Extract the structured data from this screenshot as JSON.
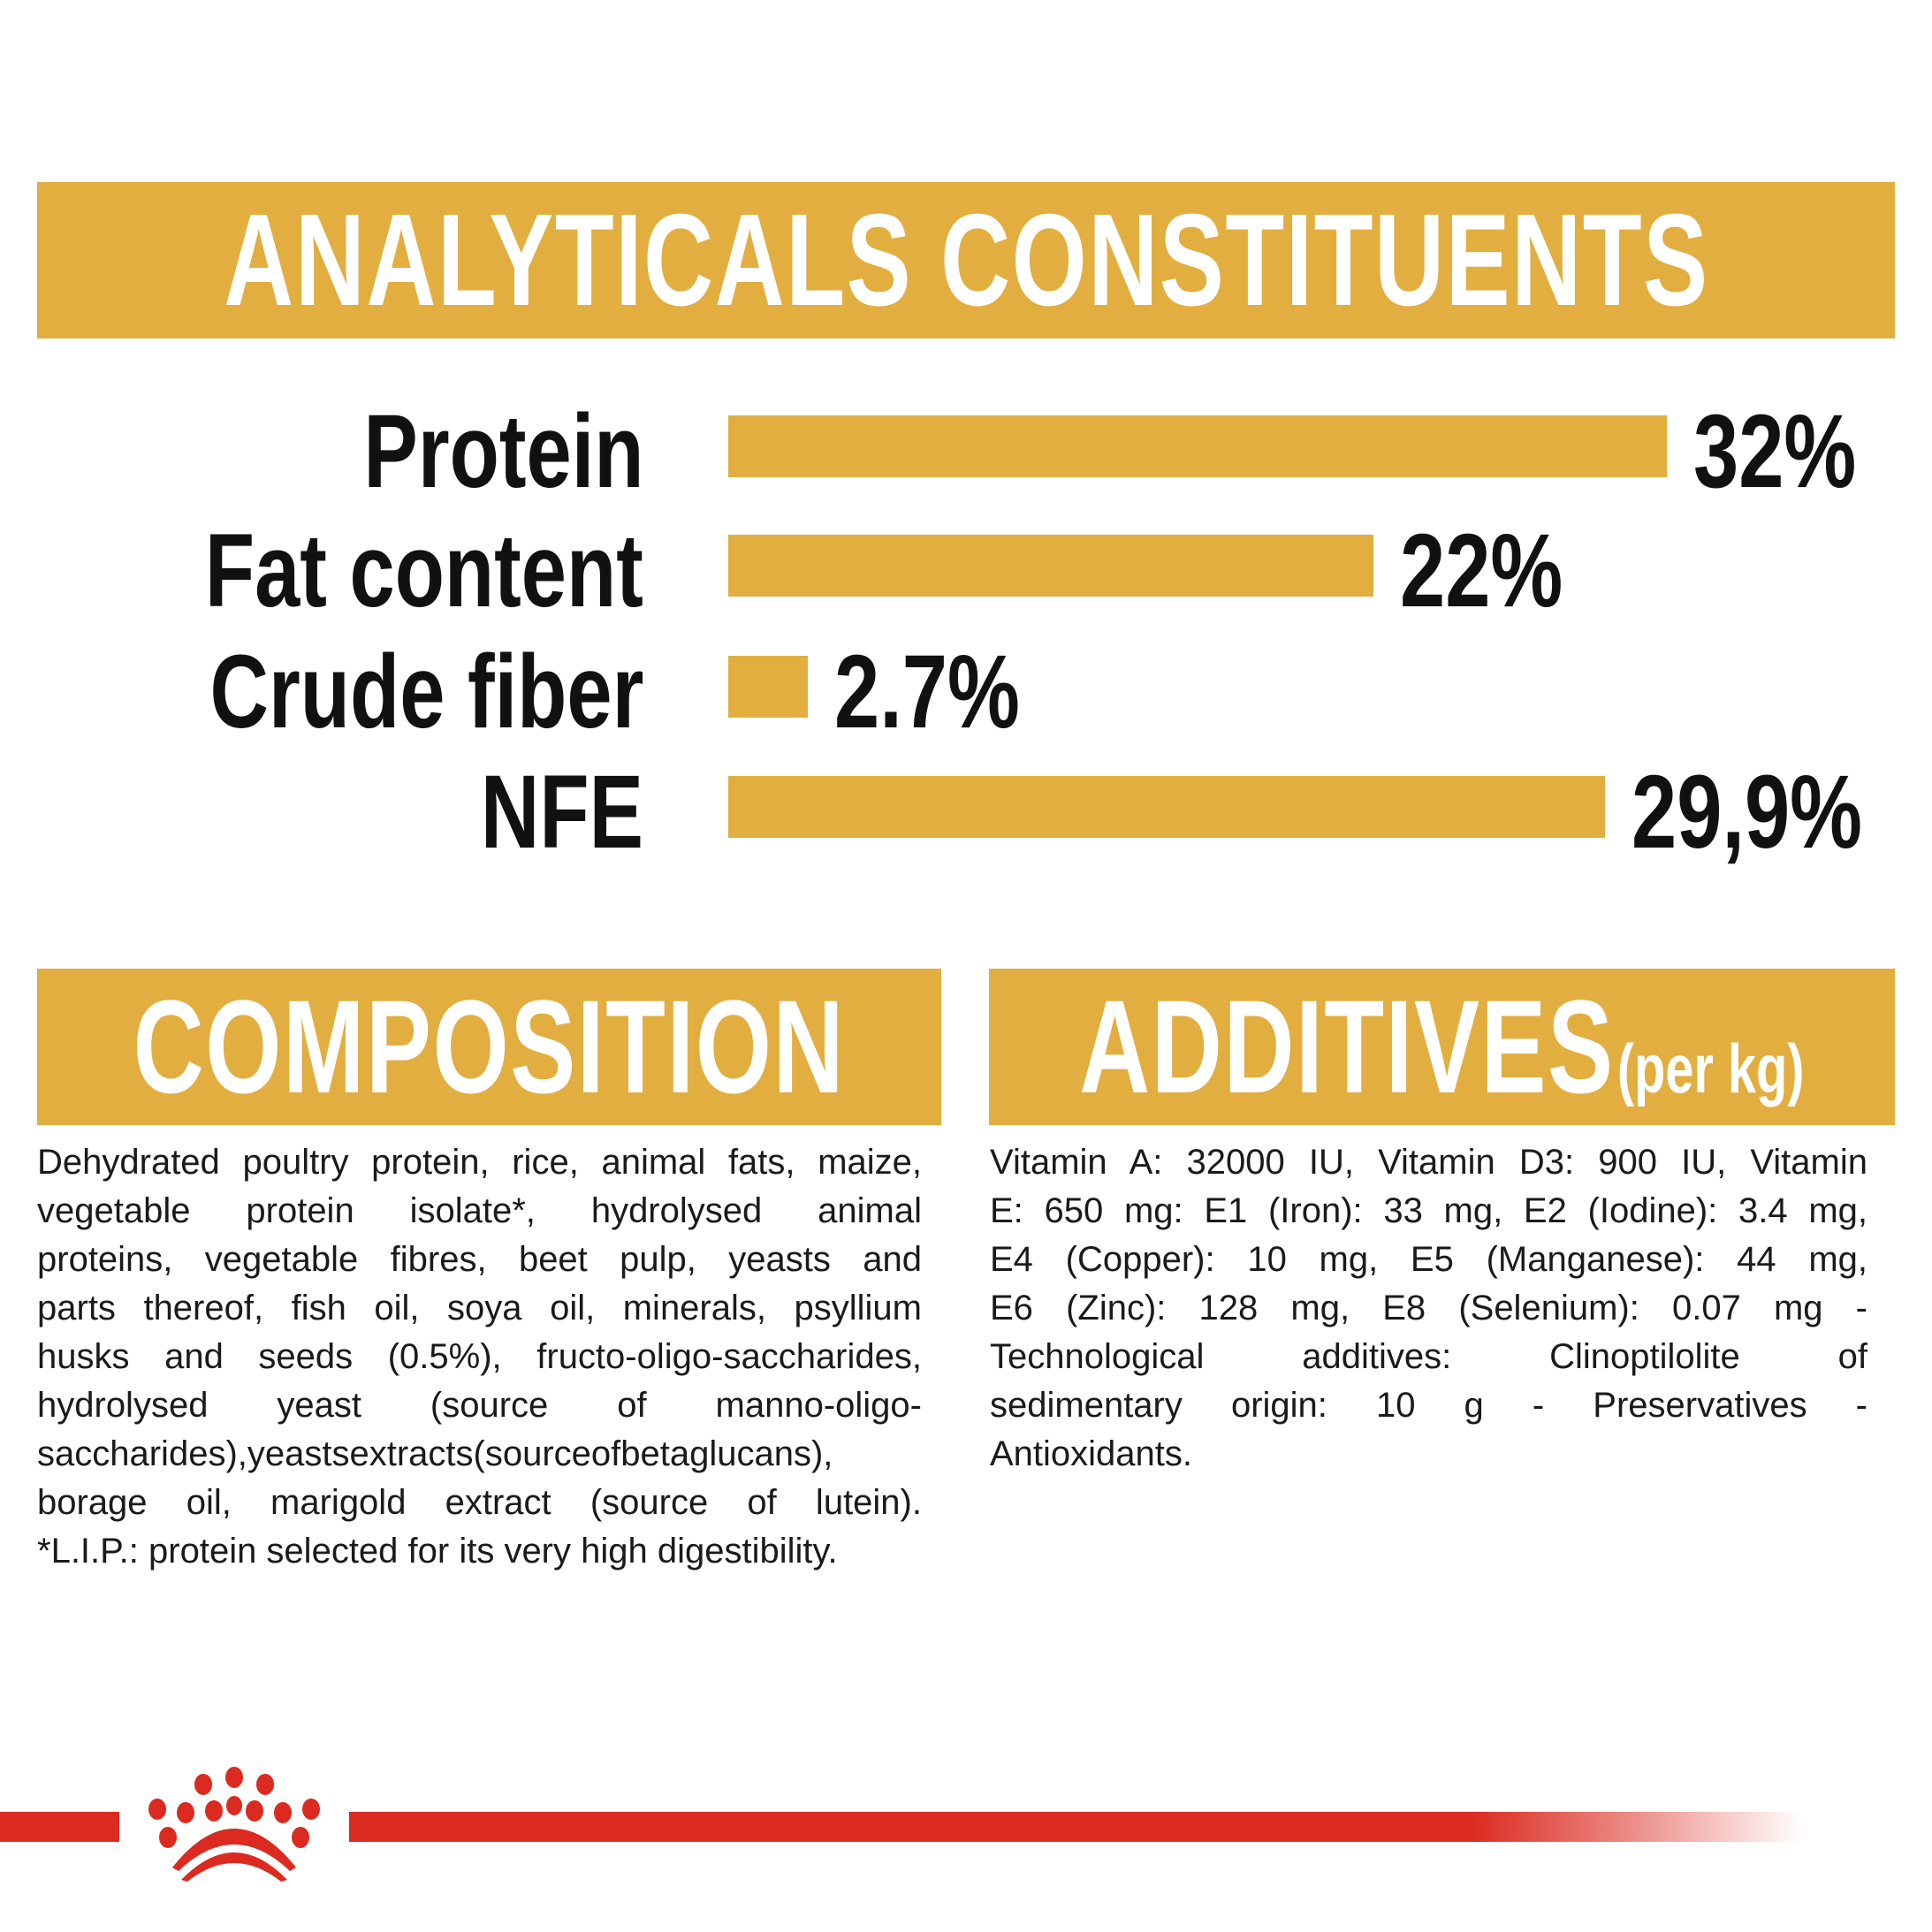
{
  "analytical": {
    "title": "ANALYTICALS CONSTITUENTS",
    "unit_max_percent": 32,
    "rows": [
      {
        "label": "Protein",
        "value_text": "32%",
        "value": 32
      },
      {
        "label": "Fat content",
        "value_text": "22%",
        "value": 22
      },
      {
        "label": "Crude fiber",
        "value_text": "2.7%",
        "value": 2.7
      },
      {
        "label": "NFE",
        "value_text": "29,9%",
        "value": 29.9
      }
    ]
  },
  "composition": {
    "title": "COMPOSITION",
    "lines": [
      "Dehydrated poultry protein, rice, animal fats, maize,",
      "vegetable protein isolate*, hydrolysed animal",
      "proteins, vegetable fibres, beet pulp, yeasts and",
      "parts thereof, fish oil, soya oil, minerals, psyllium",
      "husks and seeds (0.5%), fructo-oligo-saccharides,",
      "hydrolysed yeast (source of manno-oligo-",
      "saccharides),yeastsextracts(sourceofbetaglucans),",
      "borage oil, marigold extract (source of lutein).",
      "*L.I.P.: protein selected for its very high digestibility."
    ]
  },
  "additives": {
    "title": "ADDITIVES",
    "subtitle": "(per kg)",
    "lines": [
      "Vitamin A: 32000 IU, Vitamin D3: 900 IU, Vitamin",
      "E: 650 mg: E1 (Iron): 33 mg, E2 (Iodine): 3.4 mg,",
      "E4 (Copper): 10 mg, E5 (Manganese): 44 mg,",
      "E6 (Zinc): 128 mg, E8 (Selenium): 0.07 mg -",
      "Technological additives: Clinoptilolite of",
      "sedimentary origin: 10 g - Preservatives -",
      "Antioxidants."
    ]
  },
  "colors": {
    "accent": "#e2ae40",
    "brand_red": "#db2a1f",
    "text": "#111111"
  },
  "logo": {
    "icon": "royal-canin-crown-logo"
  }
}
